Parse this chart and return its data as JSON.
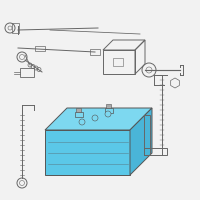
{
  "bg_color": "#f2f2f2",
  "outline_color": "#666666",
  "battery_fill_front": "#5bc8e8",
  "battery_fill_top": "#7dd8f0",
  "battery_fill_right": "#4ab5d8",
  "battery_outline": "#555555",
  "line_width": 0.7,
  "fig_size": [
    2.0,
    2.0
  ],
  "dpi": 100
}
